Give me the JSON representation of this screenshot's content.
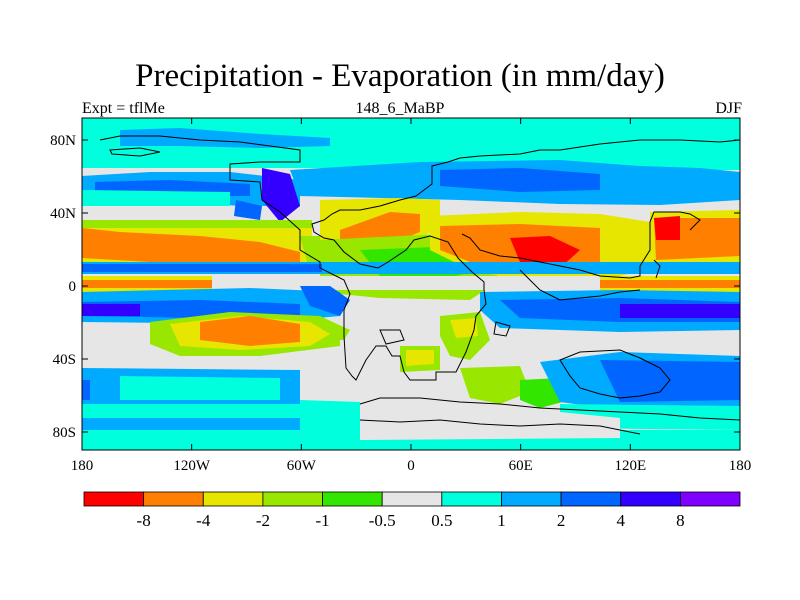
{
  "title": "Precipitation - Evaporation (in mm/day)",
  "left_label": "Expt = tflMe",
  "center_label": "148_6_MaBP",
  "right_label": "DJF",
  "map": {
    "lat_ticks": [
      "80N",
      "40N",
      "0",
      "40S",
      "80S"
    ],
    "lon_ticks": [
      "180",
      "120W",
      "60W",
      "0",
      "60E",
      "120E",
      "180"
    ]
  },
  "colorbar": {
    "colors": [
      "#ff0000",
      "#ff8000",
      "#e6e600",
      "#99e600",
      "#33e600",
      "#e6e6e6",
      "#00ffdd",
      "#00aaff",
      "#0066ff",
      "#3300ff",
      "#8000ff"
    ],
    "labels": [
      "-8",
      "-4",
      "-2",
      "-1",
      "-0.5",
      "0.5",
      "1",
      "2",
      "4",
      "8"
    ]
  },
  "colors": {
    "neutral": "#e6e6e6",
    "coast": "#000000"
  }
}
